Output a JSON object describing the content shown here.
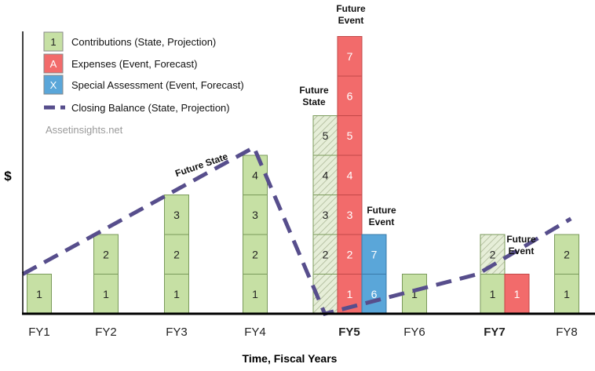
{
  "chart_data": {
    "type": "bar",
    "ylabel": "$",
    "xlabel": "Time, Fiscal Years",
    "categories": [
      "FY1",
      "FY2",
      "FY3",
      "FY4",
      "FY5",
      "FY6",
      "FY7",
      "FY8"
    ],
    "bold_categories": [
      "FY5",
      "FY7"
    ],
    "unit_blocks": [
      {
        "category": "FY1",
        "type": "contribution",
        "labels": [
          "1"
        ]
      },
      {
        "category": "FY2",
        "type": "contribution",
        "labels": [
          "1",
          "2"
        ]
      },
      {
        "category": "FY3",
        "type": "contribution",
        "labels": [
          "1",
          "2",
          "3"
        ]
      },
      {
        "category": "FY4",
        "type": "contribution",
        "labels": [
          "1",
          "2",
          "3",
          "4"
        ]
      },
      {
        "category": "FY5",
        "type": "contribution-future",
        "labels": [
          "",
          "2",
          "3",
          "4",
          "5"
        ]
      },
      {
        "category": "FY5",
        "type": "expense",
        "labels": [
          "1",
          "2",
          "3",
          "4",
          "5",
          "6",
          "7"
        ]
      },
      {
        "category": "FY5",
        "type": "special-assessment",
        "labels": [
          "6",
          "7"
        ]
      },
      {
        "category": "FY6",
        "type": "contribution",
        "labels": [
          "1"
        ]
      },
      {
        "category": "FY7",
        "type": "contribution-mixed",
        "labels": [
          "1",
          "2"
        ]
      },
      {
        "category": "FY7",
        "type": "expense",
        "labels": [
          "1"
        ]
      },
      {
        "category": "FY8",
        "type": "contribution",
        "labels": [
          "1",
          "2"
        ]
      }
    ],
    "closing_balance": [
      {
        "x": 0,
        "y": 1.0
      },
      {
        "x": 3.1,
        "y": 4.2
      },
      {
        "x": 4.05,
        "y": 0
      },
      {
        "x": 6.1,
        "y": 1.0
      },
      {
        "x": 7.35,
        "y": 2.4
      }
    ],
    "annotations": [
      {
        "id": "future-state-line",
        "text": "Future State"
      },
      {
        "id": "future-state-fy5",
        "lines": [
          "Future",
          "State"
        ]
      },
      {
        "id": "future-event-fy5-top",
        "lines": [
          "Future",
          "Event"
        ]
      },
      {
        "id": "future-event-fy5-sa",
        "lines": [
          "Future",
          "Event"
        ]
      },
      {
        "id": "future-event-fy7",
        "lines": [
          "Future",
          "Event"
        ]
      }
    ],
    "legend": {
      "position": "top-left",
      "items": [
        {
          "symbol": "1",
          "color": "#c6e0a4",
          "text": "Contributions (State, Projection)"
        },
        {
          "symbol": "A",
          "color": "#f26b6b",
          "text": "Expenses (Event, Forecast)"
        },
        {
          "symbol": "X",
          "color": "#5aa6d9",
          "text": "Special Assessment (Event, Forecast)"
        },
        {
          "symbol": "line",
          "color": "#574e8c",
          "text": "Closing Balance (State, Projection)"
        }
      ]
    },
    "watermark": "Assetinsights.net",
    "ylim": [
      0,
      7
    ],
    "colors": {
      "contribution": "#c6e0a4",
      "contribution_border": "#7a9a5a",
      "expense": "#f26b6b",
      "expense_border": "#c24848",
      "special": "#5aa6d9",
      "special_border": "#3a7aa8",
      "balance": "#574e8c",
      "axis": "#000000"
    }
  }
}
